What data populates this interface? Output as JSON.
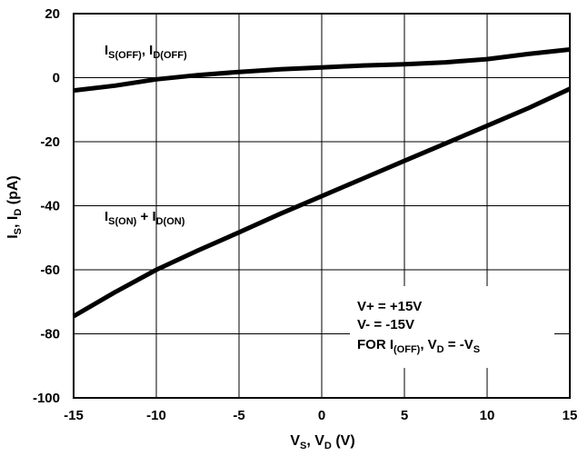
{
  "chart_data": {
    "type": "line",
    "title": "",
    "xlabel": {
      "main1": "V",
      "sub1": "S",
      "main2": ", V",
      "sub2": "D",
      "main3": " (V)"
    },
    "ylabel": {
      "main1": "I",
      "sub1": "S",
      "main2": ", I",
      "sub2": "D",
      "main3": " (pA)"
    },
    "xlim": [
      -15,
      15
    ],
    "ylim": [
      -100,
      20
    ],
    "xticks": [
      -15,
      -10,
      -5,
      0,
      5,
      10,
      15
    ],
    "yticks": [
      20,
      0,
      -20,
      -40,
      -60,
      -80,
      -100
    ],
    "xtick_labels": [
      "-15",
      "-10",
      "-5",
      "0",
      "5",
      "10",
      "15"
    ],
    "ytick_labels": [
      "20",
      "0",
      "-20",
      "-40",
      "-60",
      "-80",
      "-100"
    ],
    "grid": true,
    "series": [
      {
        "name": "IS(OFF), ID(OFF)",
        "label_parts": {
          "main1": "I",
          "sub1": "S(OFF)",
          "main2": ", I",
          "sub2": "D(OFF)"
        },
        "x": [
          -15,
          -12.5,
          -10,
          -7.5,
          -5,
          -2.5,
          0,
          2.5,
          5,
          7.5,
          10,
          12.5,
          15
        ],
        "y": [
          -4,
          -2.5,
          -0.5,
          0.8,
          1.8,
          2.6,
          3.2,
          3.8,
          4.2,
          4.8,
          5.8,
          7.4,
          8.8
        ]
      },
      {
        "name": "IS(ON) + ID(ON)",
        "label_parts": {
          "main1": "I",
          "sub1": "S(ON)",
          "main2": " + I",
          "sub2": "D(ON)"
        },
        "x": [
          -15,
          -12.5,
          -10,
          -7.5,
          -5,
          -2.5,
          0,
          2.5,
          5,
          7.5,
          10,
          12.5,
          15
        ],
        "y": [
          -74.5,
          -67,
          -60,
          -54,
          -48.3,
          -42.5,
          -37,
          -31.5,
          -26,
          -20.5,
          -15,
          -9.5,
          -3.5
        ]
      }
    ],
    "annotations": {
      "line1": "V+ = +15V",
      "line2": "V- = -15V",
      "line3": {
        "main1": "FOR I",
        "sub1": "(OFF)",
        "main2": ", V",
        "sub2": "D",
        "main3": " = -V",
        "sub3": "S"
      }
    }
  }
}
